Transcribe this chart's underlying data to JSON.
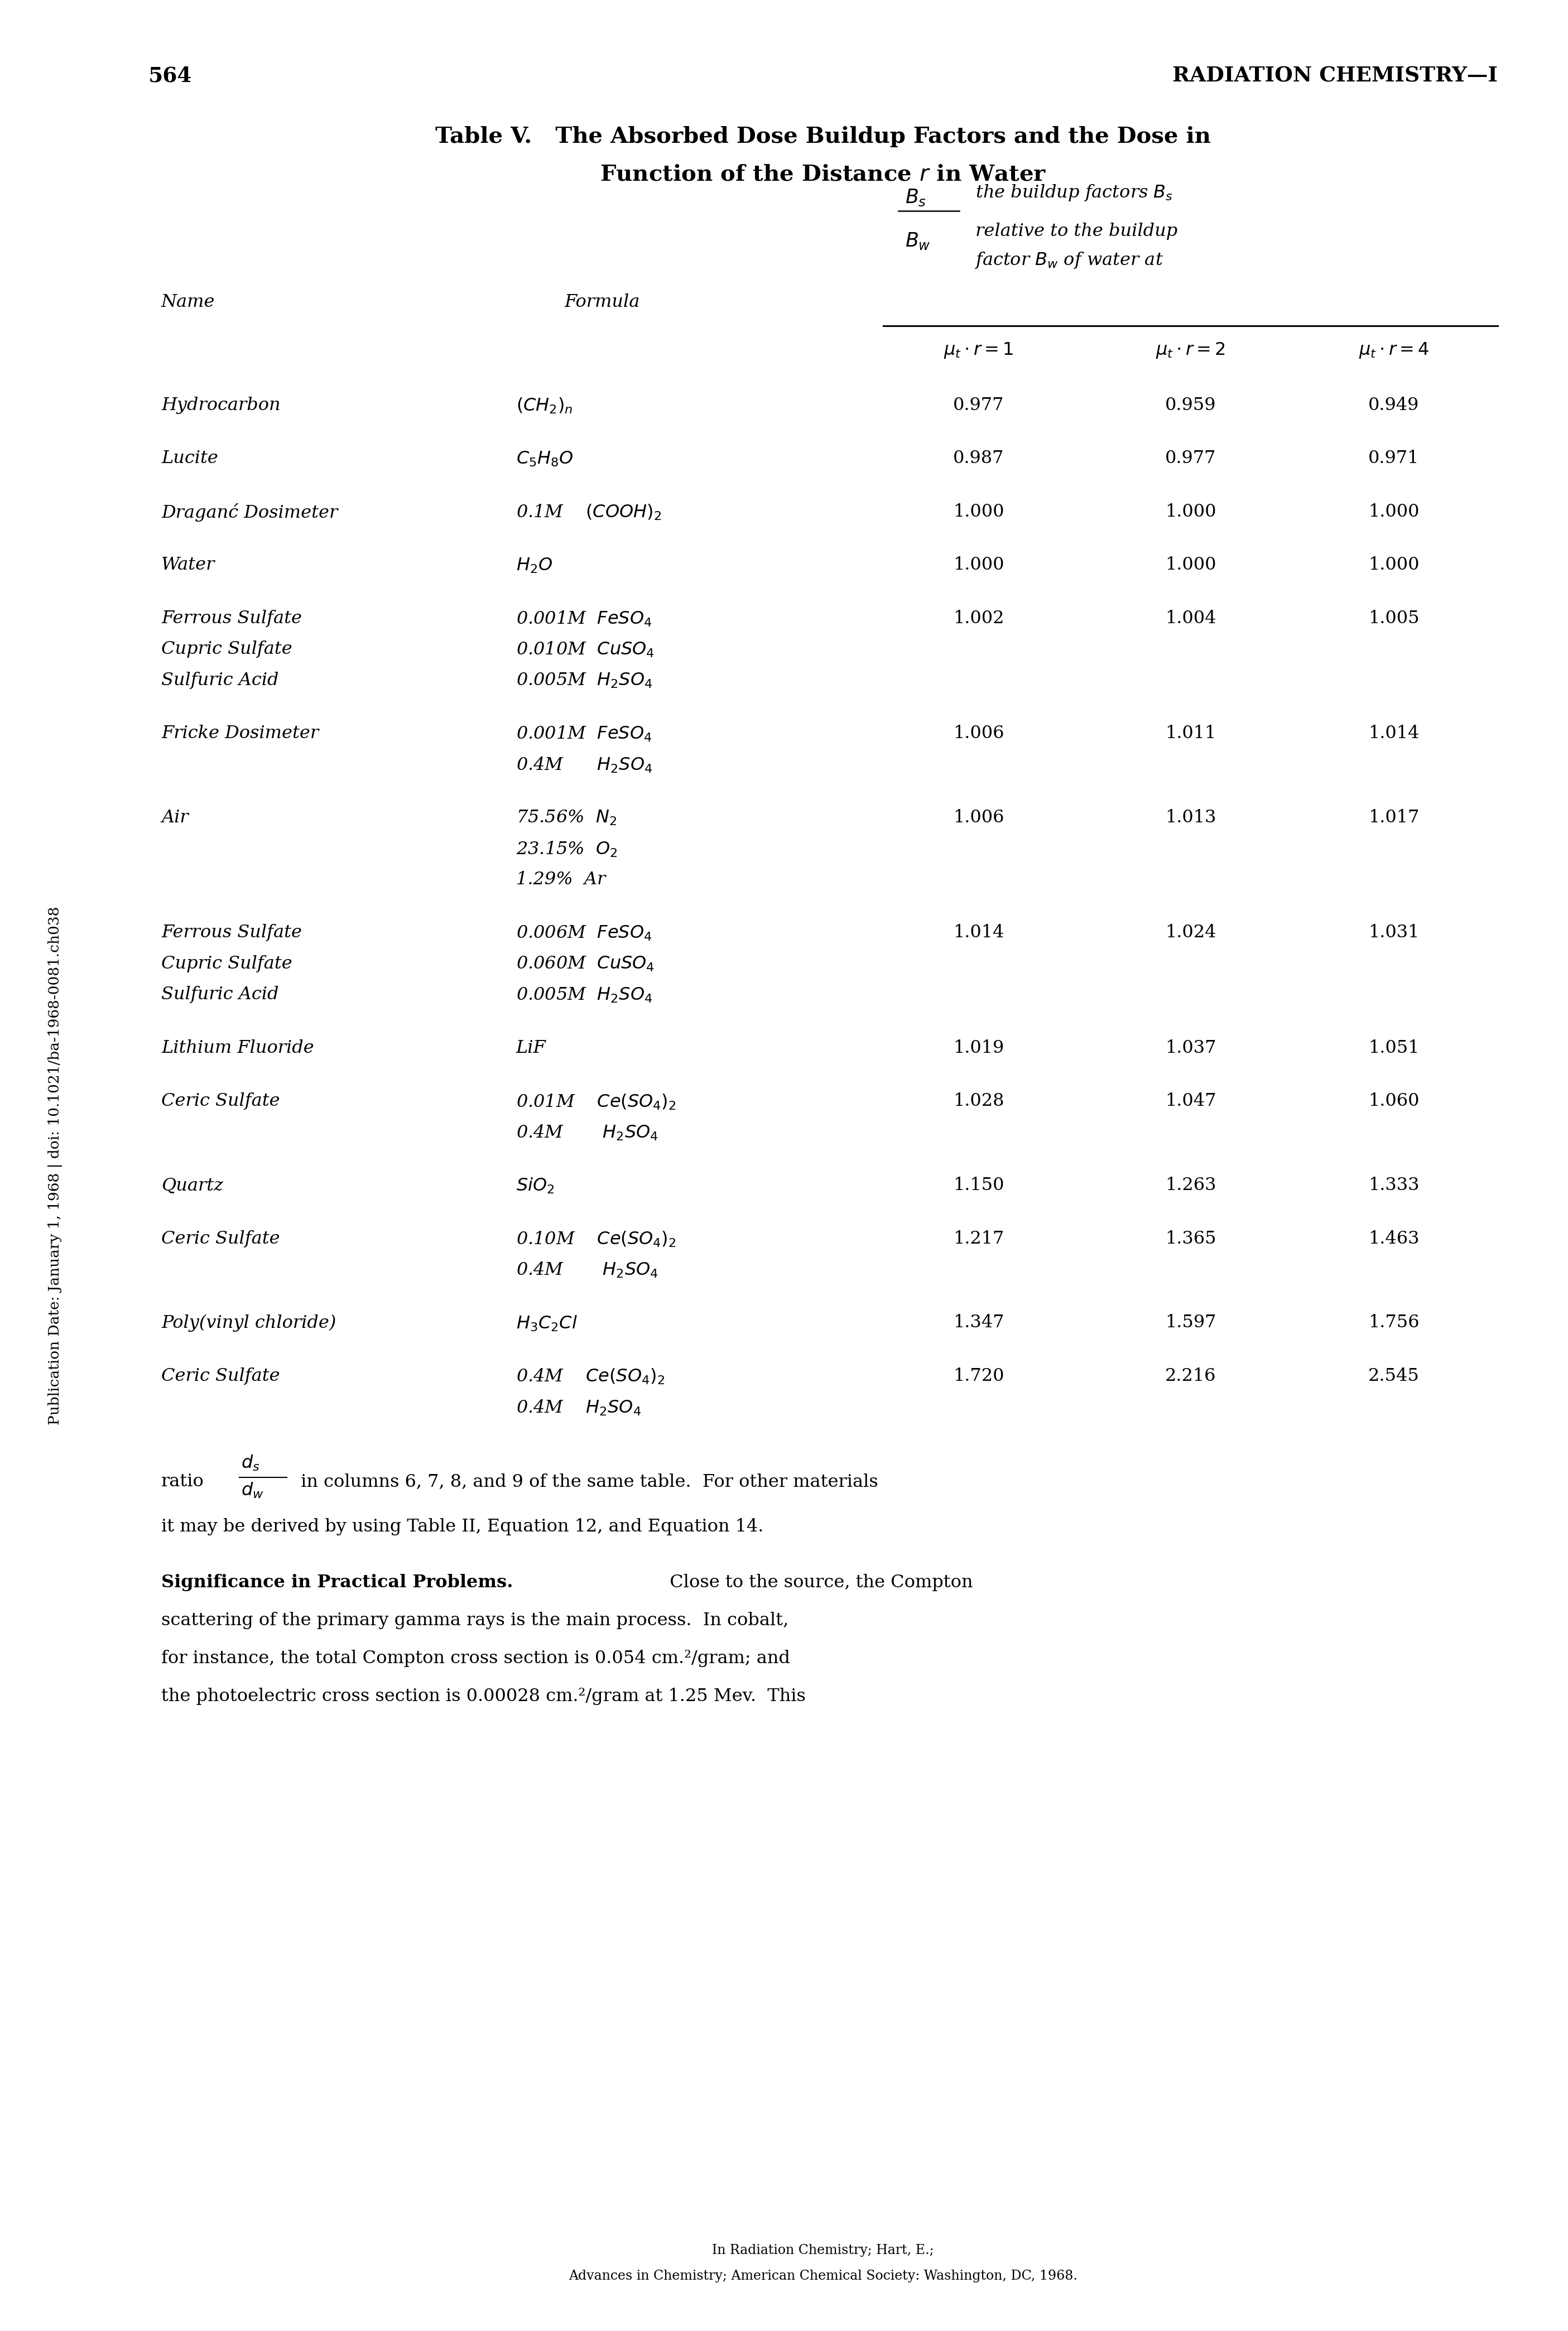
{
  "page_number": "564",
  "header": "RADIATION CHEMISTRY—I",
  "footnote1": "In Radiation Chemistry; Hart, E.;",
  "footnote2": "Advances in Chemistry; American Chemical Society: Washington, DC, 1968.",
  "bg_color": "#ffffff",
  "text_color": "#000000",
  "row_data": [
    {
      "names": [
        "Hydrocarbon"
      ],
      "formulas": [
        "$(CH_2)_n$"
      ],
      "r1": "0.977",
      "r2": "0.959",
      "r4": "0.949"
    },
    {
      "names": [
        "Lucite"
      ],
      "formulas": [
        "$C_5H_8O$"
      ],
      "r1": "0.987",
      "r2": "0.977",
      "r4": "0.971"
    },
    {
      "names": [
        "Draganć Dosimeter"
      ],
      "formulas": [
        "0.1M    $(COOH)_2$"
      ],
      "r1": "1.000",
      "r2": "1.000",
      "r4": "1.000"
    },
    {
      "names": [
        "Water"
      ],
      "formulas": [
        "$H_2O$"
      ],
      "r1": "1.000",
      "r2": "1.000",
      "r4": "1.000"
    },
    {
      "names": [
        "Ferrous Sulfate",
        "Cupric Sulfate",
        "Sulfuric Acid"
      ],
      "formulas": [
        "0.001M  $FeSO_4$",
        "0.010M  $CuSO_4$",
        "0.005M  $H_2SO_4$"
      ],
      "r1": "1.002",
      "r2": "1.004",
      "r4": "1.005"
    },
    {
      "names": [
        "Fricke Dosimeter"
      ],
      "formulas": [
        "0.001M  $FeSO_4$",
        "0.4M      $H_2SO_4$"
      ],
      "r1": "1.006",
      "r2": "1.011",
      "r4": "1.014"
    },
    {
      "names": [
        "Air"
      ],
      "formulas": [
        "75.56%  $N_2$",
        "23.15%  $O_2$",
        "1.29%  Ar"
      ],
      "r1": "1.006",
      "r2": "1.013",
      "r4": "1.017"
    },
    {
      "names": [
        "Ferrous Sulfate",
        "Cupric Sulfate",
        "Sulfuric Acid"
      ],
      "formulas": [
        "0.006M  $FeSO_4$",
        "0.060M  $CuSO_4$",
        "0.005M  $H_2SO_4$"
      ],
      "r1": "1.014",
      "r2": "1.024",
      "r4": "1.031"
    },
    {
      "names": [
        "Lithium Fluoride"
      ],
      "formulas": [
        "LiF"
      ],
      "r1": "1.019",
      "r2": "1.037",
      "r4": "1.051"
    },
    {
      "names": [
        "Ceric Sulfate"
      ],
      "formulas": [
        "0.01M    $Ce(SO_4)_2$",
        "0.4M       $H_2SO_4$"
      ],
      "r1": "1.028",
      "r2": "1.047",
      "r4": "1.060"
    },
    {
      "names": [
        "Quartz"
      ],
      "formulas": [
        "$SiO_2$"
      ],
      "r1": "1.150",
      "r2": "1.263",
      "r4": "1.333"
    },
    {
      "names": [
        "Ceric Sulfate"
      ],
      "formulas": [
        "0.10M    $Ce(SO_4)_2$",
        "0.4M       $H_2SO_4$"
      ],
      "r1": "1.217",
      "r2": "1.365",
      "r4": "1.463"
    },
    {
      "names": [
        "Poly(vinyl chloride)"
      ],
      "formulas": [
        "$H_3C_2Cl$"
      ],
      "r1": "1.347",
      "r2": "1.597",
      "r4": "1.756"
    },
    {
      "names": [
        "Ceric Sulfate"
      ],
      "formulas": [
        "0.4M    $Ce(SO_4)_2$",
        "0.4M    $H_2SO_4$"
      ],
      "r1": "1.720",
      "r2": "2.216",
      "r4": "2.545"
    }
  ]
}
